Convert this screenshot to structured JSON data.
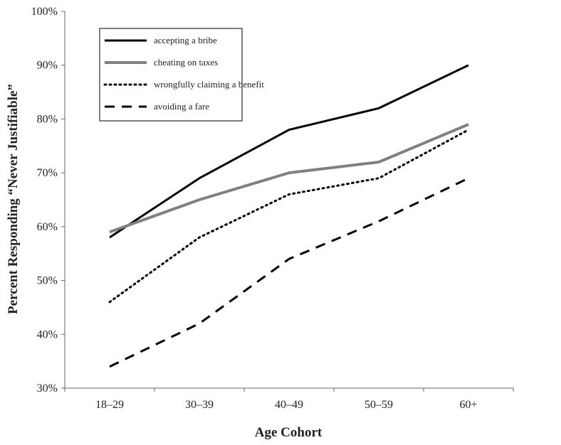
{
  "chart_data": {
    "type": "line",
    "title": "",
    "xlabel": "Age Cohort",
    "ylabel": "Percent Responding “Never Justifiable”",
    "categories": [
      "18–29",
      "30–39",
      "40–49",
      "50–59",
      "60+"
    ],
    "ylim": [
      30,
      100
    ],
    "yticks": [
      30,
      40,
      50,
      60,
      70,
      80,
      90,
      100
    ],
    "ytick_labels": [
      "30%",
      "40%",
      "50%",
      "60%",
      "70%",
      "80%",
      "90%",
      "100%"
    ],
    "grid": false,
    "legend_position": "top-left",
    "series": [
      {
        "name": "accepting a bribe",
        "values": [
          58,
          69,
          78,
          82,
          90
        ],
        "color": "#000000",
        "style": "solid"
      },
      {
        "name": "cheating on taxes",
        "values": [
          59,
          65,
          70,
          72,
          79
        ],
        "color": "#808080",
        "style": "solid"
      },
      {
        "name": "wrongfully claiming a benefit",
        "values": [
          46,
          58,
          66,
          69,
          78
        ],
        "color": "#000000",
        "style": "dotted"
      },
      {
        "name": "avoiding a fare",
        "values": [
          34,
          42,
          54,
          61,
          69
        ],
        "color": "#000000",
        "style": "dashed"
      }
    ]
  }
}
